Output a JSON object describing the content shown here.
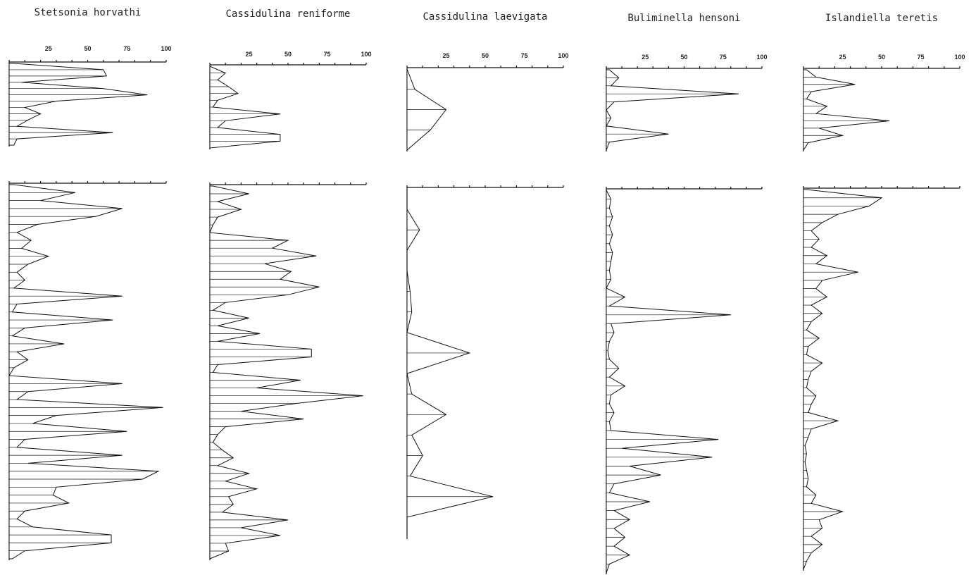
{
  "chart_data": [
    {
      "type": "area",
      "title": "Stetsonia horvathi",
      "xlim": [
        0,
        100
      ],
      "x_ticks": [
        "25",
        "50",
        "75",
        "100"
      ],
      "upper_profile": [
        3,
        60,
        62,
        8,
        60,
        88,
        30,
        10,
        20,
        12,
        5,
        66,
        5,
        3
      ],
      "lower_profile": [
        3,
        42,
        20,
        72,
        55,
        18,
        5,
        14,
        8,
        25,
        12,
        5,
        10,
        3,
        72,
        5,
        2,
        66,
        10,
        2,
        35,
        5,
        12,
        3,
        0,
        72,
        12,
        5,
        98,
        30,
        15,
        75,
        10,
        5,
        72,
        12,
        95,
        85,
        30,
        28,
        38,
        10,
        5,
        15,
        65,
        65,
        10,
        2
      ]
    },
    {
      "type": "area",
      "title": "Cassidulina reniforme",
      "xlim": [
        0,
        100
      ],
      "x_ticks": [
        "25",
        "50",
        "75",
        "100"
      ],
      "upper_profile": [
        0,
        10,
        5,
        12,
        18,
        5,
        2,
        45,
        10,
        5,
        45,
        45,
        0
      ],
      "lower_profile": [
        2,
        25,
        5,
        20,
        5,
        2,
        0,
        50,
        40,
        68,
        35,
        52,
        45,
        70,
        50,
        10,
        2,
        25,
        5,
        32,
        5,
        65,
        65,
        5,
        2,
        58,
        30,
        98,
        55,
        20,
        60,
        10,
        5,
        2,
        8,
        15,
        5,
        25,
        10,
        30,
        12,
        15,
        8,
        50,
        20,
        45,
        10,
        12,
        0
      ]
    },
    {
      "type": "area",
      "title": "Cassidulina laevigata",
      "xlim": [
        0,
        100
      ],
      "x_ticks": [
        "25",
        "50",
        "75",
        "100"
      ],
      "upper_profile": [
        0,
        5,
        25,
        15,
        0
      ],
      "lower_profile": [
        0,
        0,
        8,
        0,
        0,
        2,
        3,
        0,
        40,
        0,
        3,
        25,
        3,
        10,
        2,
        55,
        0,
        0
      ]
    },
    {
      "type": "area",
      "title": "Buliminella hensoni",
      "xlim": [
        0,
        100
      ],
      "x_ticks": [
        "25",
        "50",
        "75",
        "100"
      ],
      "upper_profile": [
        2,
        8,
        3,
        85,
        5,
        0,
        3,
        0,
        40,
        2,
        0
      ],
      "lower_profile": [
        0,
        3,
        2,
        4,
        2,
        4,
        2,
        4,
        3,
        2,
        3,
        0,
        12,
        2,
        80,
        3,
        5,
        2,
        1,
        2,
        8,
        2,
        12,
        3,
        2,
        5,
        2,
        3,
        72,
        10,
        68,
        15,
        35,
        5,
        2,
        28,
        5,
        15,
        5,
        12,
        5,
        15,
        2,
        0
      ]
    },
    {
      "type": "area",
      "title": "Islandiella teretis",
      "xlim": [
        0,
        100
      ],
      "x_ticks": [
        "25",
        "50",
        "75",
        "100"
      ],
      "upper_profile": [
        2,
        8,
        33,
        5,
        2,
        15,
        8,
        55,
        10,
        25,
        3,
        0
      ],
      "lower_profile": [
        2,
        50,
        42,
        22,
        12,
        5,
        10,
        5,
        15,
        8,
        35,
        12,
        8,
        15,
        5,
        12,
        5,
        2,
        10,
        3,
        2,
        12,
        5,
        3,
        2,
        8,
        5,
        3,
        22,
        5,
        3,
        1,
        2,
        1,
        2,
        3,
        2,
        8,
        5,
        25,
        10,
        12,
        5,
        12,
        5,
        2,
        0
      ]
    }
  ]
}
